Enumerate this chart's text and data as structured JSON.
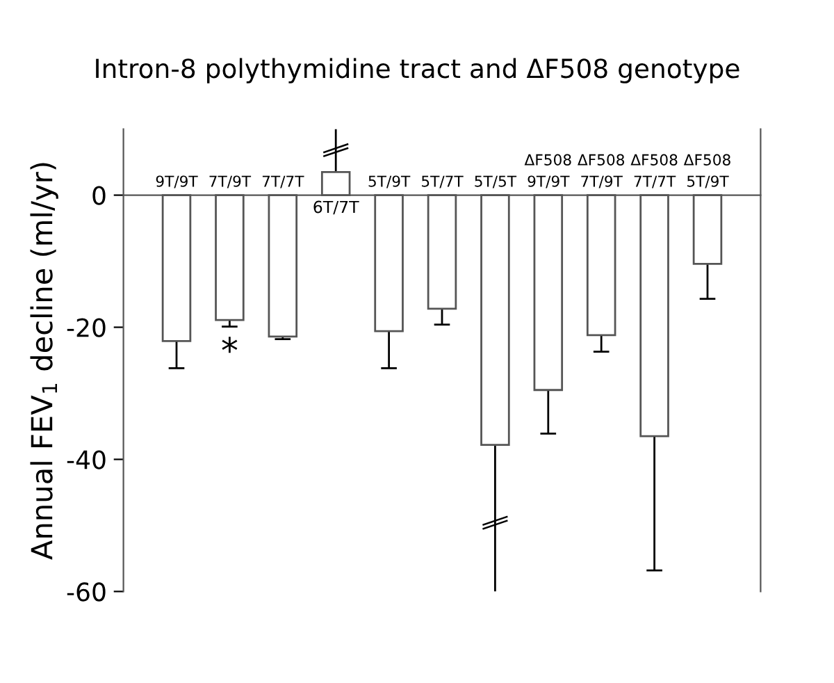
{
  "chart_data": {
    "type": "bar",
    "title": "Intron-8 polythymidine tract and ΔF508 genotype",
    "ylabel": "Annual FEV$_{1}$ decline (ml/yr)",
    "categories": [
      "9T/9T",
      "7T/9T",
      "7T/7T",
      "6T/7T",
      "5T/9T",
      "5T/7T",
      "5T/5T",
      "ΔF508\n9T/9T",
      "ΔF508\n7T/9T",
      "ΔF508\n7T/7T",
      "ΔF508\n5T/9T"
    ],
    "values": [
      -22.1,
      -18.9,
      -21.4,
      3.5,
      -20.6,
      -17.2,
      -37.8,
      -29.5,
      -21.2,
      -36.5,
      -10.4
    ],
    "errors": [
      [
        -26.2,
        -22.1
      ],
      [
        -19.9,
        -18.9
      ],
      [
        -21.8,
        -21.4
      ],
      [
        3.5,
        10
      ],
      [
        -26.2,
        -20.6
      ],
      [
        -19.6,
        -17.2
      ],
      [
        -60,
        -37.8
      ],
      [
        -36.1,
        -29.5
      ],
      [
        -23.7,
        -21.2
      ],
      [
        -56.8,
        -36.5
      ],
      [
        -15.7,
        -10.4
      ]
    ],
    "color": "#ffffff",
    "ylim": [
      -60,
      10
    ],
    "yticks": [
      0,
      -20,
      -40,
      -60
    ],
    "annotations": [
      {
        "text": "*",
        "x": "7T/9T",
        "y": -19.9
      }
    ],
    "grid": false,
    "legend": false
  }
}
